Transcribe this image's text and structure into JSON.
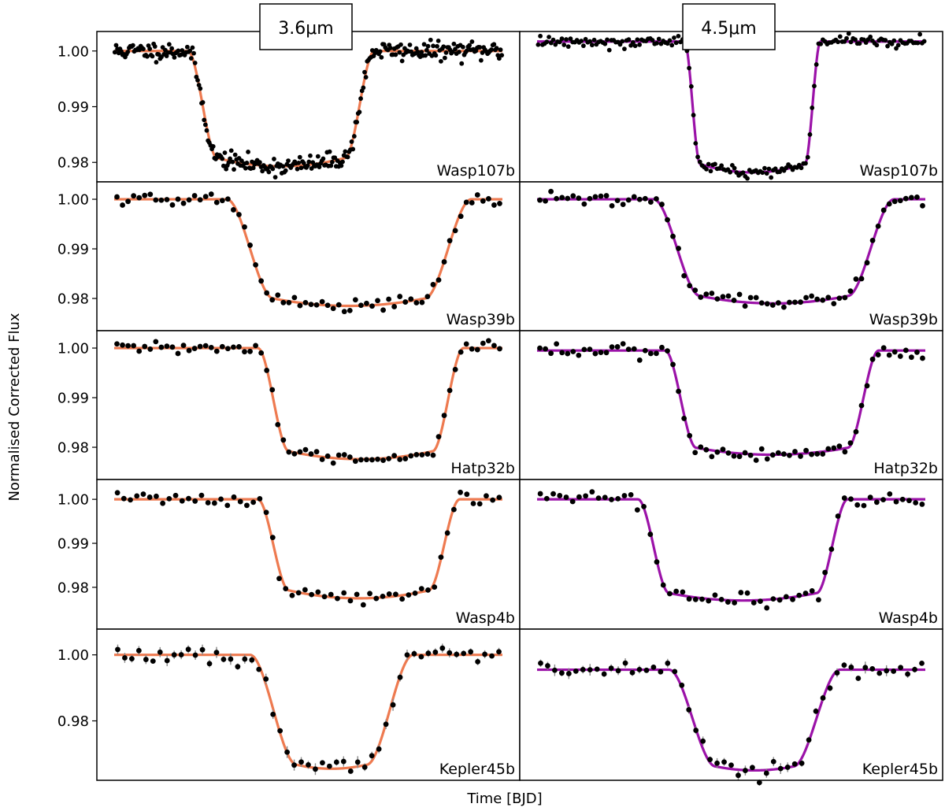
{
  "figure": {
    "ylabel": "Normalised Corrected Flux",
    "xlabel": "Time [BJD]",
    "column_labels": [
      "3.6μm",
      "4.5μm"
    ],
    "colors": {
      "col0": "#ee7a50",
      "col1": "#9b12a8",
      "points": "#000000",
      "errorbars": "#888888"
    }
  },
  "chart_data": [
    {
      "type": "scatter",
      "title": "Wasp107b",
      "channel": "3.6μm",
      "panel": 1,
      "ylim": [
        0.9765,
        1.0035
      ],
      "yticks": [
        0.98,
        0.99,
        1.0
      ],
      "ytick_labels": [
        "0.98",
        "0.99",
        "1.00"
      ],
      "dense": true,
      "model": {
        "baseline": 1.0,
        "depth": 0.0207,
        "x1": 0.19,
        "x2": 0.265,
        "x3": 0.595,
        "x4": 0.67,
        "limb": 0.0015
      },
      "noise": 0.0008,
      "n_points": 300,
      "seed": 11
    },
    {
      "type": "scatter",
      "title": "Wasp107b",
      "channel": "4.5μm",
      "panel": 1,
      "ylim": [
        0.9765,
        1.0035
      ],
      "yticks": [
        0.98,
        0.99,
        1.0
      ],
      "ytick_labels": [
        "0.98",
        "0.99",
        "1.00"
      ],
      "dense": true,
      "model": {
        "baseline": 1.0017,
        "depth": 0.0235,
        "x1": 0.38,
        "x2": 0.42,
        "x3": 0.69,
        "x4": 0.73,
        "limb": 0.0015
      },
      "noise": 0.0005,
      "n_points": 180,
      "seed": 12
    },
    {
      "type": "scatter",
      "title": "Wasp39b",
      "channel": "3.6μm",
      "panel": 2,
      "ylim": [
        0.9735,
        1.0035
      ],
      "yticks": [
        0.98,
        0.99,
        1.0
      ],
      "ytick_labels": [
        "0.98",
        "0.99",
        "1.00"
      ],
      "dense": false,
      "model": {
        "baseline": 1.0,
        "depth": 0.0215,
        "x1": 0.29,
        "x2": 0.41,
        "x3": 0.8,
        "x4": 0.92,
        "limb": 0.0015
      },
      "noise": 0.0007,
      "n_points": 70,
      "seed": 21
    },
    {
      "type": "scatter",
      "title": "Wasp39b",
      "channel": "4.5μm",
      "panel": 2,
      "ylim": [
        0.9735,
        1.0035
      ],
      "yticks": [
        0.98,
        0.99,
        1.0
      ],
      "ytick_labels": [
        "0.98",
        "0.99",
        "1.00"
      ],
      "dense": false,
      "model": {
        "baseline": 1.0,
        "depth": 0.021,
        "x1": 0.3,
        "x2": 0.42,
        "x3": 0.8,
        "x4": 0.92,
        "limb": 0.0015
      },
      "noise": 0.0007,
      "n_points": 70,
      "seed": 22
    },
    {
      "type": "scatter",
      "title": "Hatp32b",
      "channel": "3.6μm",
      "panel": 3,
      "ylim": [
        0.9735,
        1.0035
      ],
      "yticks": [
        0.98,
        0.99,
        1.0
      ],
      "ytick_labels": [
        "0.98",
        "0.99",
        "1.00"
      ],
      "dense": false,
      "model": {
        "baseline": 1.0,
        "depth": 0.0224,
        "x1": 0.37,
        "x2": 0.45,
        "x3": 0.82,
        "x4": 0.9,
        "limb": 0.0016
      },
      "noise": 0.0006,
      "n_points": 70,
      "seed": 31
    },
    {
      "type": "scatter",
      "title": "Hatp32b",
      "channel": "4.5μm",
      "panel": 3,
      "ylim": [
        0.9735,
        1.0035
      ],
      "yticks": [
        0.98,
        0.99,
        1.0
      ],
      "ytick_labels": [
        "0.98",
        "0.99",
        "1.00"
      ],
      "dense": false,
      "model": {
        "baseline": 0.9995,
        "depth": 0.021,
        "x1": 0.33,
        "x2": 0.41,
        "x3": 0.8,
        "x4": 0.88,
        "limb": 0.0014
      },
      "noise": 0.0007,
      "n_points": 70,
      "seed": 32
    },
    {
      "type": "scatter",
      "title": "Wasp4b",
      "channel": "3.6μm",
      "panel": 4,
      "ylim": [
        0.9705,
        1.0045
      ],
      "yticks": [
        0.98,
        0.99,
        1.0
      ],
      "ytick_labels": [
        "0.98",
        "0.99",
        "1.00"
      ],
      "dense": false,
      "model": {
        "baseline": 1.0,
        "depth": 0.0225,
        "x1": 0.37,
        "x2": 0.45,
        "x3": 0.81,
        "x4": 0.89,
        "limb": 0.0018
      },
      "noise": 0.0009,
      "n_points": 60,
      "seed": 41
    },
    {
      "type": "scatter",
      "title": "Wasp4b",
      "channel": "4.5μm",
      "panel": 4,
      "ylim": [
        0.9705,
        1.0045
      ],
      "yticks": [
        0.98,
        0.99,
        1.0
      ],
      "ytick_labels": [
        "0.98",
        "0.99",
        "1.00"
      ],
      "dense": false,
      "model": {
        "baseline": 1.0,
        "depth": 0.023,
        "x1": 0.26,
        "x2": 0.34,
        "x3": 0.72,
        "x4": 0.8,
        "limb": 0.0017
      },
      "noise": 0.0009,
      "n_points": 60,
      "seed": 42
    },
    {
      "type": "scatter",
      "title": "Kepler45b",
      "channel": "3.6μm",
      "panel": 5,
      "ylim": [
        0.962,
        1.0078
      ],
      "yticks": [
        0.98,
        1.0
      ],
      "ytick_labels": [
        "0.98",
        "1.00"
      ],
      "dense": false,
      "model": {
        "baseline": 1.0,
        "depth": 0.0345,
        "x1": 0.35,
        "x2": 0.47,
        "x3": 0.65,
        "x4": 0.77,
        "limb": 0.0012
      },
      "noise": 0.0012,
      "n_points": 55,
      "seed": 51,
      "errorbars": true
    },
    {
      "type": "scatter",
      "title": "Kepler45b",
      "channel": "4.5μm",
      "panel": 5,
      "ylim": [
        0.962,
        1.0078
      ],
      "yticks": [
        0.98,
        1.0
      ],
      "ytick_labels": [
        "0.98",
        "1.00"
      ],
      "dense": false,
      "model": {
        "baseline": 0.9955,
        "depth": 0.0305,
        "x1": 0.34,
        "x2": 0.46,
        "x3": 0.66,
        "x4": 0.78,
        "limb": 0.0012
      },
      "noise": 0.0012,
      "n_points": 55,
      "seed": 52,
      "errorbars": true
    }
  ]
}
